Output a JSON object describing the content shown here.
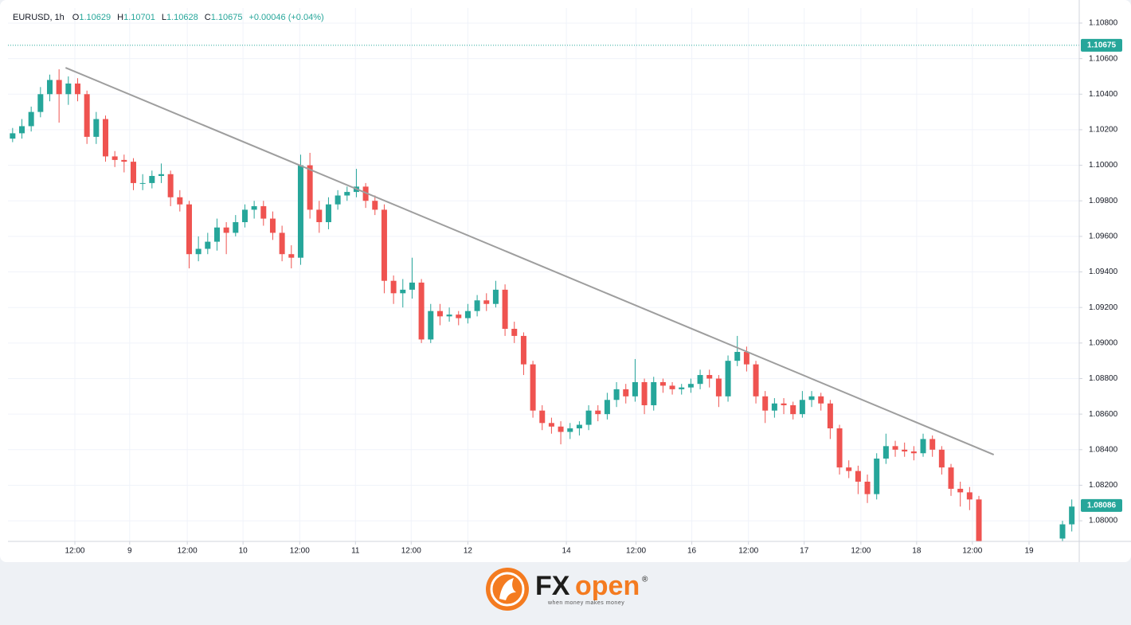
{
  "chart_data": {
    "type": "candlestick",
    "header": {
      "symbol": "EURUSD, 1h",
      "ohlc": [
        {
          "key": "O",
          "value": "1.10629"
        },
        {
          "key": "H",
          "value": "1.10701"
        },
        {
          "key": "L",
          "value": "1.10628"
        },
        {
          "key": "C",
          "value": "1.10675"
        }
      ],
      "change": "+0.00046 (+0.04%)"
    },
    "up_color": "#26a69a",
    "down_color": "#ef5350",
    "grid": true,
    "ylim": [
      1.07884,
      1.10885
    ],
    "yticks": [
      {
        "value": 1.08,
        "label": "1.08000"
      },
      {
        "value": 1.082,
        "label": "1.08200"
      },
      {
        "value": 1.084,
        "label": "1.08400"
      },
      {
        "value": 1.086,
        "label": "1.08600"
      },
      {
        "value": 1.088,
        "label": "1.08800"
      },
      {
        "value": 1.09,
        "label": "1.09000"
      },
      {
        "value": 1.092,
        "label": "1.09200"
      },
      {
        "value": 1.094,
        "label": "1.09400"
      },
      {
        "value": 1.096,
        "label": "1.09600"
      },
      {
        "value": 1.098,
        "label": "1.09800"
      },
      {
        "value": 1.1,
        "label": "1.10000"
      },
      {
        "value": 1.102,
        "label": "1.10200"
      },
      {
        "value": 1.104,
        "label": "1.10400"
      },
      {
        "value": 1.106,
        "label": "1.10600"
      },
      {
        "value": 1.108,
        "label": "1.10800"
      }
    ],
    "xlim": [
      0,
      115.3
    ],
    "xticks": [
      {
        "value": 7.2,
        "label": "12:00"
      },
      {
        "value": 13.1,
        "label": "9"
      },
      {
        "value": 19.3,
        "label": "12:00"
      },
      {
        "value": 25.3,
        "label": "10"
      },
      {
        "value": 31.4,
        "label": "12:00"
      },
      {
        "value": 37.4,
        "label": "11"
      },
      {
        "value": 43.4,
        "label": "12:00"
      },
      {
        "value": 49.5,
        "label": "12"
      },
      {
        "value": 60.1,
        "label": "14"
      },
      {
        "value": 67.6,
        "label": "12:00"
      },
      {
        "value": 73.6,
        "label": "16"
      },
      {
        "value": 79.7,
        "label": "12:00"
      },
      {
        "value": 85.7,
        "label": "17"
      },
      {
        "value": 91.8,
        "label": "12:00"
      },
      {
        "value": 97.8,
        "label": "18"
      },
      {
        "value": 103.8,
        "label": "12:00"
      },
      {
        "value": 109.9,
        "label": "19"
      }
    ],
    "candles": [
      [
        1.1015,
        1.1021,
        1.1013,
        1.1018
      ],
      [
        1.1018,
        1.1026,
        1.1015,
        1.1022
      ],
      [
        1.1022,
        1.1033,
        1.1019,
        1.103
      ],
      [
        1.103,
        1.1044,
        1.1027,
        1.104
      ],
      [
        1.104,
        1.1051,
        1.1036,
        1.1048
      ],
      [
        1.1048,
        1.1054,
        1.1024,
        1.104
      ],
      [
        1.104,
        1.105,
        1.1034,
        1.1046
      ],
      [
        1.1046,
        1.1049,
        1.1036,
        1.104
      ],
      [
        1.104,
        1.1042,
        1.1012,
        1.1016
      ],
      [
        1.1016,
        1.103,
        1.1012,
        1.1026
      ],
      [
        1.1026,
        1.1028,
        1.1002,
        1.1005
      ],
      [
        1.1005,
        1.1008,
        1.0999,
        1.1003
      ],
      [
        1.1003,
        1.1006,
        1.0996,
        1.1002
      ],
      [
        1.1002,
        1.1004,
        1.0986,
        1.099
      ],
      [
        1.099,
        1.0995,
        1.0986,
        1.099
      ],
      [
        1.099,
        1.0997,
        1.0987,
        1.0994
      ],
      [
        1.0994,
        1.1001,
        1.099,
        1.0995
      ],
      [
        1.0995,
        1.0997,
        1.0977,
        1.0982
      ],
      [
        1.0982,
        1.0986,
        1.0974,
        1.0978
      ],
      [
        1.0978,
        1.098,
        1.0942,
        1.095
      ],
      [
        1.095,
        1.096,
        1.0946,
        1.0953
      ],
      [
        1.0953,
        1.0962,
        1.095,
        1.0957
      ],
      [
        1.0957,
        1.097,
        1.0952,
        1.0965
      ],
      [
        1.0965,
        1.0968,
        1.095,
        1.0962
      ],
      [
        1.0962,
        1.0972,
        1.096,
        1.0968
      ],
      [
        1.0968,
        1.0978,
        1.0965,
        1.0975
      ],
      [
        1.0975,
        1.098,
        1.097,
        1.0977
      ],
      [
        1.0977,
        1.098,
        1.0966,
        1.097
      ],
      [
        1.097,
        1.0974,
        1.0958,
        1.0962
      ],
      [
        1.0962,
        1.0966,
        1.0946,
        1.095
      ],
      [
        1.095,
        1.0955,
        1.0942,
        1.0948
      ],
      [
        1.0948,
        1.1006,
        1.0944,
        1.1
      ],
      [
        1.1,
        1.1007,
        1.097,
        1.0975
      ],
      [
        1.0975,
        1.098,
        1.0962,
        1.0968
      ],
      [
        1.0968,
        1.0982,
        1.0964,
        1.0978
      ],
      [
        1.0978,
        1.0986,
        1.0975,
        1.0983
      ],
      [
        1.0983,
        1.0988,
        1.098,
        1.0985
      ],
      [
        1.0985,
        1.0998,
        1.0982,
        1.0988
      ],
      [
        1.0988,
        1.099,
        1.0976,
        1.098
      ],
      [
        1.098,
        1.0983,
        1.0972,
        1.0975
      ],
      [
        1.0975,
        1.0978,
        1.0928,
        1.0935
      ],
      [
        1.0935,
        1.0938,
        1.0922,
        1.0928
      ],
      [
        1.0928,
        1.0936,
        1.092,
        1.093
      ],
      [
        1.093,
        1.0948,
        1.0925,
        1.0934
      ],
      [
        1.0934,
        1.0936,
        1.09,
        1.0902
      ],
      [
        1.0902,
        1.0922,
        1.09,
        1.0918
      ],
      [
        1.0918,
        1.0922,
        1.091,
        1.0915
      ],
      [
        1.0915,
        1.092,
        1.0912,
        1.0916
      ],
      [
        1.0916,
        1.0918,
        1.091,
        1.0914
      ],
      [
        1.0914,
        1.0922,
        1.0911,
        1.0918
      ],
      [
        1.0918,
        1.0927,
        1.0915,
        1.0924
      ],
      [
        1.0924,
        1.0928,
        1.0918,
        1.0922
      ],
      [
        1.0922,
        1.0935,
        1.092,
        1.093
      ],
      [
        1.093,
        1.0933,
        1.0904,
        1.0908
      ],
      [
        1.0908,
        1.0912,
        1.09,
        1.0904
      ],
      [
        1.0904,
        1.0906,
        1.0882,
        1.0888
      ],
      [
        1.0888,
        1.089,
        1.0858,
        1.0862
      ],
      [
        1.0862,
        1.0865,
        1.0851,
        1.0855
      ],
      [
        1.0855,
        1.0858,
        1.0849,
        1.0853
      ],
      [
        1.0853,
        1.0856,
        1.0843,
        1.085
      ],
      [
        1.085,
        1.0855,
        1.0846,
        1.0852
      ],
      [
        1.0852,
        1.0856,
        1.0848,
        1.0854
      ],
      [
        1.0854,
        1.0865,
        1.0851,
        1.0862
      ],
      [
        1.0862,
        1.0865,
        1.0856,
        1.086
      ],
      [
        1.086,
        1.0872,
        1.0857,
        1.0868
      ],
      [
        1.0868,
        1.0878,
        1.0864,
        1.0874
      ],
      [
        1.0874,
        1.0877,
        1.0866,
        1.087
      ],
      [
        1.087,
        1.0891,
        1.0867,
        1.0878
      ],
      [
        1.0878,
        1.088,
        1.086,
        1.0865
      ],
      [
        1.0865,
        1.0881,
        1.0862,
        1.0878
      ],
      [
        1.0878,
        1.088,
        1.0872,
        1.0876
      ],
      [
        1.0876,
        1.0878,
        1.0871,
        1.0874
      ],
      [
        1.0874,
        1.0877,
        1.0871,
        1.0875
      ],
      [
        1.0875,
        1.088,
        1.0872,
        1.0877
      ],
      [
        1.0877,
        1.0885,
        1.0874,
        1.0882
      ],
      [
        1.0882,
        1.0885,
        1.0875,
        1.088
      ],
      [
        1.088,
        1.0882,
        1.0864,
        1.087
      ],
      [
        1.087,
        1.0893,
        1.0867,
        1.089
      ],
      [
        1.089,
        1.0904,
        1.0887,
        1.0895
      ],
      [
        1.0895,
        1.0898,
        1.0884,
        1.0888
      ],
      [
        1.0888,
        1.089,
        1.0866,
        1.087
      ],
      [
        1.087,
        1.0873,
        1.0855,
        1.0862
      ],
      [
        1.0862,
        1.0869,
        1.0858,
        1.0866
      ],
      [
        1.0866,
        1.0869,
        1.086,
        1.0865
      ],
      [
        1.0865,
        1.0867,
        1.0857,
        1.086
      ],
      [
        1.086,
        1.0873,
        1.0858,
        1.0868
      ],
      [
        1.0868,
        1.0873,
        1.0864,
        1.087
      ],
      [
        1.087,
        1.0872,
        1.0862,
        1.0866
      ],
      [
        1.0866,
        1.0868,
        1.0846,
        1.0852
      ],
      [
        1.0852,
        1.0854,
        1.0826,
        1.083
      ],
      [
        1.083,
        1.0834,
        1.0824,
        1.0828
      ],
      [
        1.0828,
        1.0831,
        1.0815,
        1.0822
      ],
      [
        1.0822,
        1.0826,
        1.081,
        1.0815
      ],
      [
        1.0815,
        1.0838,
        1.0812,
        1.0835
      ],
      [
        1.0835,
        1.0849,
        1.0832,
        1.0842
      ],
      [
        1.0842,
        1.0845,
        1.0836,
        1.084
      ],
      [
        1.084,
        1.0844,
        1.0836,
        1.0839
      ],
      [
        1.0839,
        1.0842,
        1.0834,
        1.0838
      ],
      [
        1.0838,
        1.0849,
        1.0836,
        1.0846
      ],
      [
        1.0846,
        1.0848,
        1.0836,
        1.084
      ],
      [
        1.084,
        1.0842,
        1.0826,
        1.083
      ],
      [
        1.083,
        1.0832,
        1.0814,
        1.0818
      ],
      [
        1.0818,
        1.0822,
        1.0808,
        1.0816
      ],
      [
        1.0816,
        1.0819,
        1.0806,
        1.0812
      ],
      [
        1.0812,
        1.0814,
        1.0784,
        1.0788
      ],
      null,
      null,
      null,
      null,
      null,
      null,
      null,
      null,
      [
        1.079,
        1.08,
        1.0786,
        1.0798
      ],
      [
        1.0798,
        1.0812,
        1.0794,
        1.0808
      ]
    ],
    "trendline": {
      "x": [
        6.2,
        106.1
      ],
      "y": [
        1.10549,
        1.08372
      ],
      "color": "#9e9e9e"
    },
    "price_markers": [
      {
        "value": 1.10675,
        "dotted": true
      },
      {
        "value": 1.08086,
        "dotted": false
      }
    ],
    "marker_color": "#26a69a"
  },
  "footer": {
    "brand_a": "FX",
    "brand_b": "open",
    "reg": "®",
    "tagline": "when money makes money"
  }
}
